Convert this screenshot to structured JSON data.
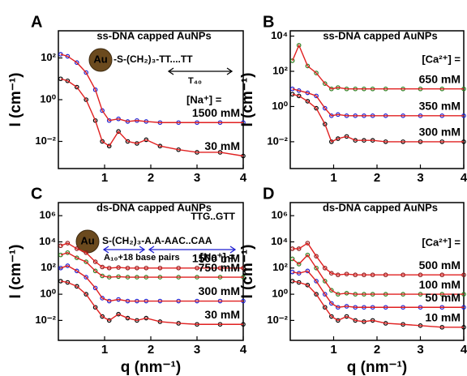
{
  "chart_data": [
    {
      "type": "line",
      "label": "A",
      "title": "ss-DNA capped AuNPs",
      "ylabel": "I (cm⁻¹)",
      "annotations": [
        "Au",
        "-S-(CH₂)₃-TT....TT",
        "T₄₀",
        "[Na⁺] ="
      ],
      "log_y": true,
      "xlim": [
        0,
        4
      ],
      "ylim": [
        0.0005,
        2000
      ],
      "xticks": [
        1,
        2,
        3,
        4
      ],
      "yticks": [
        {
          "value": 0.01,
          "label": "10⁻²"
        },
        {
          "value": 1,
          "label": "10⁰"
        },
        {
          "value": 100,
          "label": "10²"
        }
      ],
      "x": [
        0.05,
        0.2,
        0.4,
        0.6,
        0.8,
        0.95,
        1.1,
        1.3,
        1.5,
        1.7,
        1.9,
        2.2,
        2.6,
        3,
        3.5,
        4
      ],
      "series": [
        {
          "name": "1500 mM",
          "color": "#1f1fd0",
          "values": [
            150,
            120,
            60,
            20,
            3,
            0.3,
            0.1,
            0.12,
            0.09,
            0.1,
            0.09,
            0.08,
            0.08,
            0.08,
            0.08,
            0.08
          ]
        },
        {
          "name": "30 mM",
          "color": "#000000",
          "values": [
            10,
            8,
            4,
            1,
            0.1,
            0.01,
            0.006,
            0.03,
            0.01,
            0.008,
            0.012,
            0.006,
            0.004,
            0.003,
            0.003,
            0.002
          ]
        }
      ]
    },
    {
      "type": "line",
      "label": "B",
      "title": "ss-DNA capped AuNPs",
      "ylabel": "I (cm⁻¹)",
      "annotations": [
        "[Ca²⁺] ="
      ],
      "log_y": true,
      "xlim": [
        0,
        4
      ],
      "ylim": [
        0.0003,
        20000
      ],
      "xticks": [
        1,
        2,
        3,
        4
      ],
      "yticks": [
        {
          "value": 0.01,
          "label": "10⁻²"
        },
        {
          "value": 1,
          "label": "10⁰"
        },
        {
          "value": 100,
          "label": "10²"
        },
        {
          "value": 10000,
          "label": "10⁴"
        }
      ],
      "x": [
        0.05,
        0.2,
        0.4,
        0.6,
        0.8,
        0.95,
        1.1,
        1.3,
        1.5,
        1.7,
        1.9,
        2.2,
        2.6,
        3,
        3.5,
        4
      ],
      "series": [
        {
          "name": "650 mM",
          "color": "#2e7d1e",
          "values": [
            400,
            3000,
            200,
            80,
            20,
            10,
            12,
            10,
            10,
            10,
            10,
            10,
            10,
            10,
            10,
            10
          ]
        },
        {
          "name": "350 mM",
          "color": "#1f1fd0",
          "values": [
            10,
            8,
            6,
            4,
            0.8,
            0.3,
            0.35,
            0.3,
            0.3,
            0.3,
            0.3,
            0.3,
            0.3,
            0.3,
            0.3,
            0.3
          ]
        },
        {
          "name": "300 mM",
          "color": "#000000",
          "values": [
            5,
            4,
            2,
            0.8,
            0.1,
            0.01,
            0.015,
            0.02,
            0.012,
            0.012,
            0.012,
            0.01,
            0.01,
            0.01,
            0.01,
            0.01
          ]
        }
      ]
    },
    {
      "type": "line",
      "label": "C",
      "title": "ds-DNA capped AuNPs",
      "ylabel": "I (cm⁻¹)",
      "xlabel": "q (nm⁻¹)",
      "annotations": [
        "TTG..GTT",
        "Au",
        "S-(CH₂)₃-A.A-AAC..CAA",
        "A₁₀+18 base pairs",
        "[Na⁺] ="
      ],
      "log_y": true,
      "xlim": [
        0,
        4
      ],
      "ylim": [
        0.0003,
        10000000
      ],
      "xticks": [
        1,
        2,
        3,
        4
      ],
      "yticks": [
        {
          "value": 0.01,
          "label": "10⁻²"
        },
        {
          "value": 1,
          "label": "10⁰"
        },
        {
          "value": 100,
          "label": "10²"
        },
        {
          "value": 10000,
          "label": "10⁴"
        },
        {
          "value": 1000000,
          "label": "10⁶"
        }
      ],
      "x": [
        0.05,
        0.2,
        0.4,
        0.6,
        0.8,
        0.95,
        1.1,
        1.3,
        1.5,
        1.7,
        1.9,
        2.2,
        2.6,
        3,
        3.5,
        4
      ],
      "series": [
        {
          "name": "1500 mM",
          "color": "#8b1a1a",
          "values": [
            5000,
            8000,
            3000,
            1500,
            300,
            120,
            100,
            110,
            100,
            100,
            100,
            100,
            100,
            100,
            100,
            100
          ]
        },
        {
          "name": "750 mM",
          "color": "#2e7d1e",
          "values": [
            1000,
            1500,
            600,
            300,
            60,
            25,
            20,
            22,
            20,
            20,
            20,
            20,
            20,
            20,
            20,
            20
          ]
        },
        {
          "name": "300 mM",
          "color": "#1f1fd0",
          "values": [
            100,
            150,
            60,
            20,
            3,
            0.5,
            0.3,
            0.4,
            0.3,
            0.3,
            0.3,
            0.3,
            0.3,
            0.3,
            0.3,
            0.3
          ]
        },
        {
          "name": "30 mM",
          "color": "#000000",
          "values": [
            10,
            8,
            4,
            1,
            0.1,
            0.02,
            0.01,
            0.03,
            0.015,
            0.01,
            0.015,
            0.008,
            0.006,
            0.005,
            0.005,
            0.005
          ]
        }
      ]
    },
    {
      "type": "line",
      "label": "D",
      "title": "ds-DNA capped AuNPs",
      "ylabel": "I (cm⁻¹)",
      "xlabel": "q (nm⁻¹)",
      "annotations": [
        "[Ca²⁺] ="
      ],
      "log_y": true,
      "xlim": [
        0,
        4
      ],
      "ylim": [
        0.0003,
        10000000
      ],
      "xticks": [
        1,
        2,
        3,
        4
      ],
      "yticks": [
        {
          "value": 0.01,
          "label": "10⁻²"
        },
        {
          "value": 1,
          "label": "10⁰"
        },
        {
          "value": 100,
          "label": "10²"
        },
        {
          "value": 10000,
          "label": "10⁴"
        },
        {
          "value": 1000000,
          "label": "10⁶"
        }
      ],
      "x": [
        0.05,
        0.2,
        0.4,
        0.6,
        0.8,
        0.95,
        1.1,
        1.3,
        1.5,
        1.7,
        1.9,
        2.2,
        2.6,
        3,
        3.5,
        4
      ],
      "series": [
        {
          "name": "500 mM",
          "color": "#8b1a1a",
          "values": [
            3000,
            3000,
            8000,
            800,
            100,
            40,
            30,
            35,
            30,
            30,
            30,
            30,
            30,
            30,
            30,
            30
          ]
        },
        {
          "name": "100 mM",
          "color": "#2e7d1e",
          "values": [
            500,
            200,
            1000,
            100,
            10,
            2,
            1,
            1.2,
            1,
            1,
            1,
            1,
            1,
            1,
            1,
            1
          ]
        },
        {
          "name": "50 mM",
          "color": "#1f1fd0",
          "values": [
            50,
            40,
            60,
            10,
            1,
            0.2,
            0.1,
            0.12,
            0.1,
            0.1,
            0.1,
            0.1,
            0.1,
            0.1,
            0.1,
            0.1
          ]
        },
        {
          "name": "10 mM",
          "color": "#000000",
          "values": [
            10,
            8,
            5,
            1,
            0.1,
            0.02,
            0.01,
            0.02,
            0.01,
            0.008,
            0.01,
            0.006,
            0.005,
            0.004,
            0.003,
            0.003
          ]
        }
      ]
    }
  ]
}
